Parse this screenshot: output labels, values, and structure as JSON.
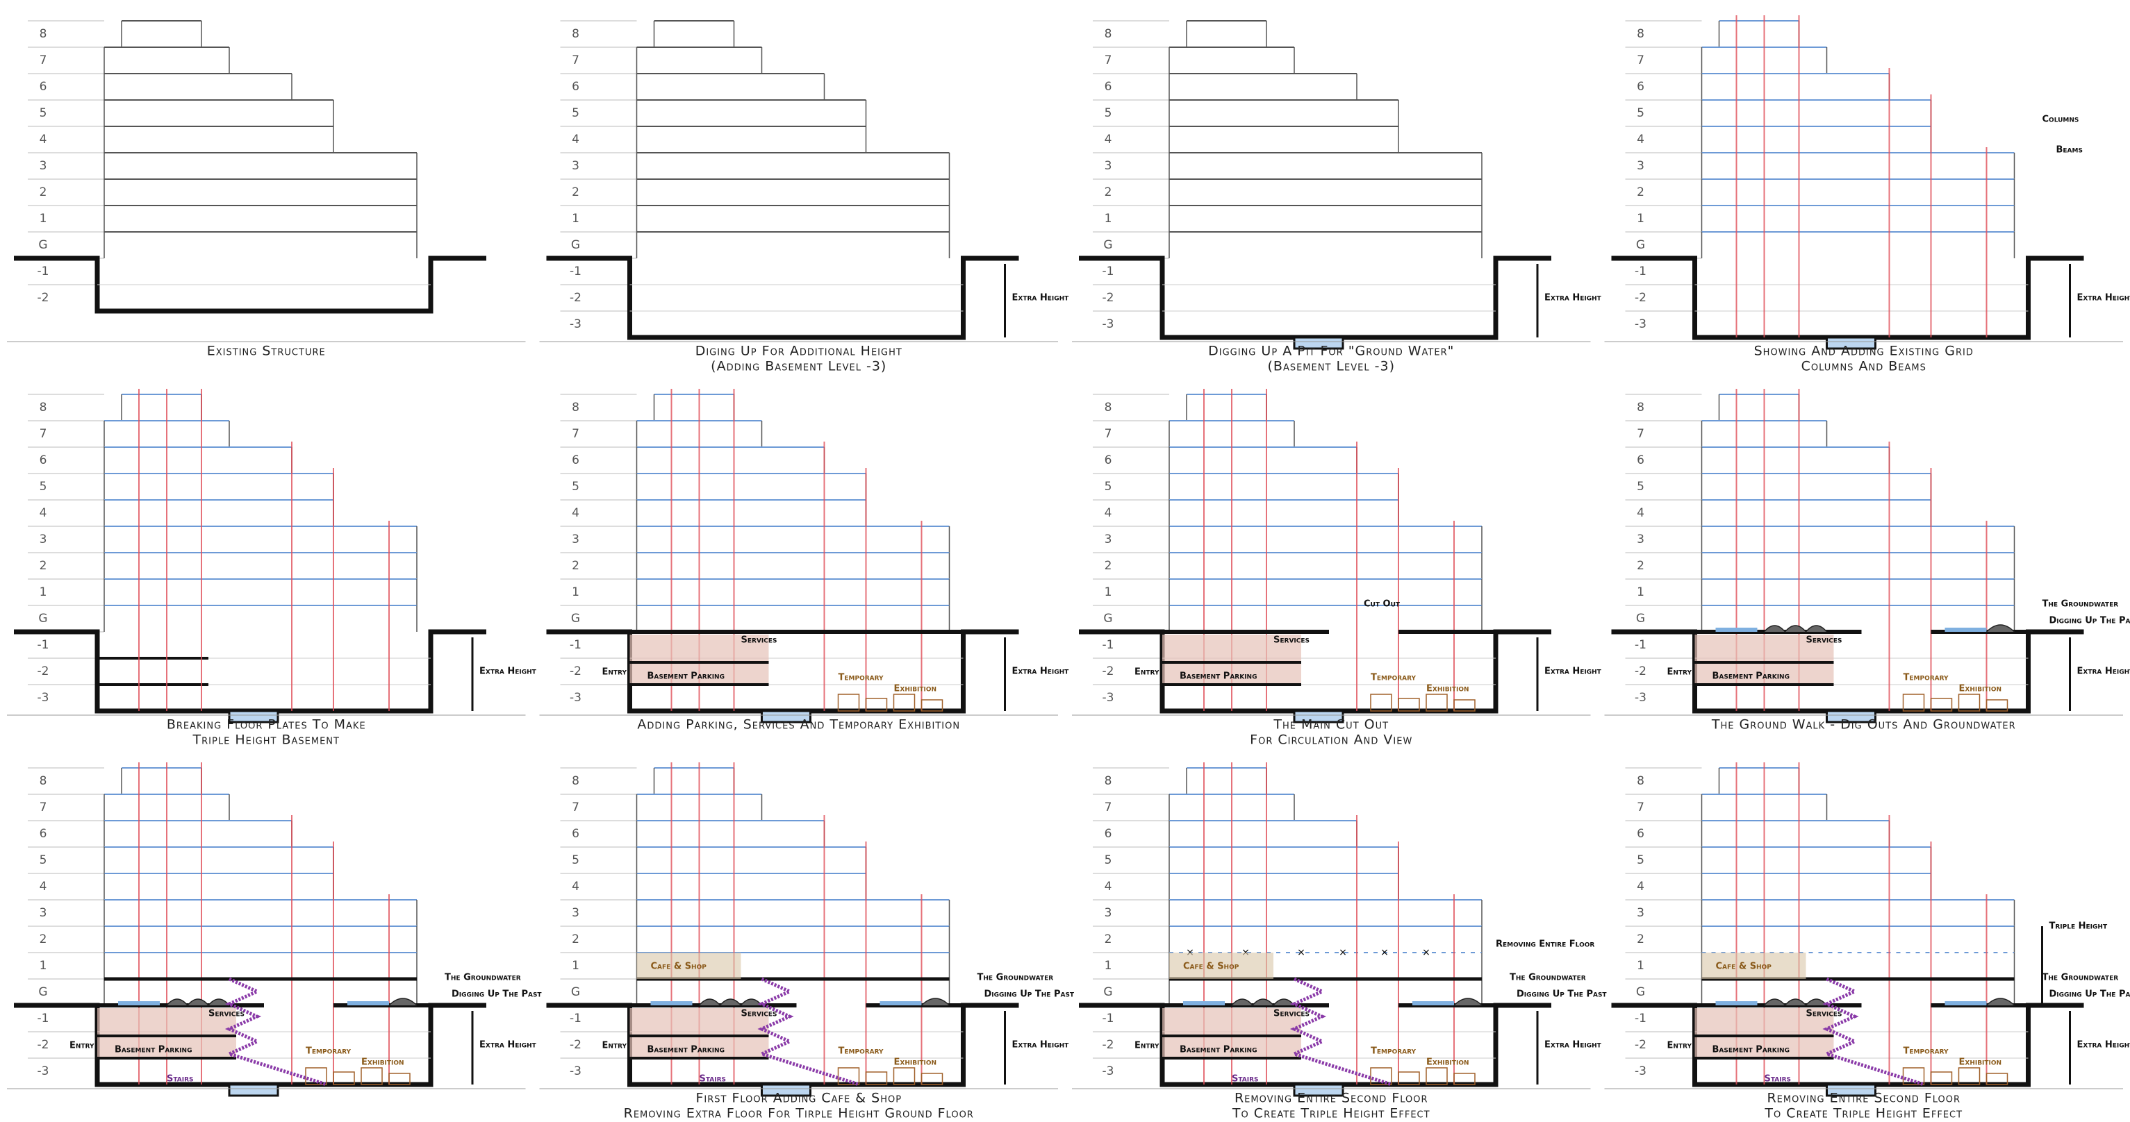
{
  "panels": [
    {
      "levels": [
        "8",
        "7",
        "6",
        "5",
        "4",
        "3",
        "2",
        "1",
        "G",
        "-1",
        "-2"
      ],
      "caption": [
        "Existing Structure"
      ],
      "features": [],
      "notes": {}
    },
    {
      "levels": [
        "8",
        "7",
        "6",
        "5",
        "4",
        "3",
        "2",
        "1",
        "G",
        "-1",
        "-2",
        "-3"
      ],
      "caption": [
        "Diging Up For Additional Height",
        "(Adding Basement Level -3)"
      ],
      "features": [
        "deep"
      ],
      "notes": {
        "extra": "Extra Height"
      }
    },
    {
      "levels": [
        "8",
        "7",
        "6",
        "5",
        "4",
        "3",
        "2",
        "1",
        "G",
        "-1",
        "-2",
        "-3"
      ],
      "caption": [
        "Digging Up A Pit For \"Ground Water\"",
        "(Basement Level -3)"
      ],
      "features": [
        "deep",
        "pit"
      ],
      "notes": {
        "extra": "Extra Height"
      }
    },
    {
      "levels": [
        "8",
        "7",
        "6",
        "5",
        "4",
        "3",
        "2",
        "1",
        "G",
        "-1",
        "-2",
        "-3"
      ],
      "caption": [
        "Showing And Adding Existing Grid",
        "Columns And Beams"
      ],
      "features": [
        "deep",
        "pit",
        "grid"
      ],
      "notes": {
        "extra": "Extra Height",
        "columns": "Columns",
        "beams": "Beams"
      }
    },
    {
      "levels": [
        "8",
        "7",
        "6",
        "5",
        "4",
        "3",
        "2",
        "1",
        "G",
        "-1",
        "-2",
        "-3"
      ],
      "caption": [
        "Breaking Floor Plates To Make",
        "Triple Height Basement"
      ],
      "features": [
        "deep",
        "pit",
        "grid",
        "broken"
      ],
      "notes": {
        "extra": "Extra Height"
      }
    },
    {
      "levels": [
        "8",
        "7",
        "6",
        "5",
        "4",
        "3",
        "2",
        "1",
        "G",
        "-1",
        "-2",
        "-3"
      ],
      "caption": [
        "Adding Parking, Services And Temporary Exhibition"
      ],
      "features": [
        "deep",
        "pit",
        "grid",
        "parking"
      ],
      "notes": {
        "extra": "Extra Height",
        "services": "Services",
        "entry": "Entry",
        "parking": "Basement Parking",
        "temporary": "Temporary",
        "exhibition": "Exhibition"
      }
    },
    {
      "levels": [
        "8",
        "7",
        "6",
        "5",
        "4",
        "3",
        "2",
        "1",
        "G",
        "-1",
        "-2",
        "-3"
      ],
      "caption": [
        "The Main Cut Out",
        "For Circulation And View"
      ],
      "features": [
        "deep",
        "pit",
        "grid",
        "parking",
        "cutout"
      ],
      "notes": {
        "extra": "Extra Height",
        "services": "Services",
        "entry": "Entry",
        "parking": "Basement Parking",
        "temporary": "Temporary",
        "exhibition": "Exhibition",
        "cut": "Cut Out"
      }
    },
    {
      "levels": [
        "8",
        "7",
        "6",
        "5",
        "4",
        "3",
        "2",
        "1",
        "G",
        "-1",
        "-2",
        "-3"
      ],
      "caption": [
        "The Ground Walk - Dig Outs And Groundwater"
      ],
      "features": [
        "deep",
        "pit",
        "grid",
        "parking",
        "cutout",
        "ground"
      ],
      "notes": {
        "extra": "Extra Height",
        "services": "Services",
        "entry": "Entry",
        "parking": "Basement Parking",
        "temporary": "Temporary",
        "exhibition": "Exhibition",
        "groundwater": "The Groundwater",
        "past": "Digging Up The Past"
      }
    },
    {
      "levels": [
        "8",
        "7",
        "6",
        "5",
        "4",
        "3",
        "2",
        "1",
        "G",
        "-1",
        "-2",
        "-3"
      ],
      "caption": [],
      "features": [
        "deep",
        "pit",
        "grid",
        "parking",
        "cutout",
        "ground",
        "stairs"
      ],
      "notes": {
        "extra": "Extra Height",
        "services": "Services",
        "entry": "Entry",
        "parking": "Basement Parking",
        "temporary": "Temporary",
        "exhibition": "Exhibition",
        "groundwater": "The Groundwater",
        "past": "Digging Up The Past",
        "stairs": "Stairs"
      }
    },
    {
      "levels": [
        "8",
        "7",
        "6",
        "5",
        "4",
        "3",
        "2",
        "1",
        "G",
        "-1",
        "-2",
        "-3"
      ],
      "caption": [
        "First Floor Adding Cafe & Shop",
        "Removing Extra Floor For Tirple Height Ground Floor"
      ],
      "features": [
        "deep",
        "pit",
        "grid",
        "parking",
        "cutout",
        "ground",
        "stairs",
        "cafe"
      ],
      "notes": {
        "extra": "Extra Height",
        "services": "Services",
        "entry": "Entry",
        "parking": "Basement Parking",
        "temporary": "Temporary",
        "exhibition": "Exhibition",
        "groundwater": "The Groundwater",
        "past": "Digging Up The Past",
        "stairs": "Stairs",
        "cafe": "Cafe & Shop"
      }
    },
    {
      "levels": [
        "8",
        "7",
        "6",
        "5",
        "4",
        "3",
        "2",
        "1",
        "G",
        "-1",
        "-2",
        "-3"
      ],
      "caption": [
        "Removing Entire Second Floor",
        "To Create Triple Height Effect"
      ],
      "features": [
        "deep",
        "pit",
        "grid",
        "parking",
        "cutout",
        "ground",
        "stairs",
        "cafe",
        "remove"
      ],
      "notes": {
        "extra": "Extra Height",
        "services": "Services",
        "entry": "Entry",
        "parking": "Basement Parking",
        "temporary": "Temporary",
        "exhibition": "Exhibition",
        "groundwater": "The Groundwater",
        "past": "Digging Up The Past",
        "stairs": "Stairs",
        "cafe": "Cafe & Shop",
        "remove": "Removing Entire Floor"
      }
    },
    {
      "levels": [
        "8",
        "7",
        "6",
        "5",
        "4",
        "3",
        "2",
        "1",
        "G",
        "-1",
        "-2",
        "-3"
      ],
      "caption": [
        "Removing Entire Second Floor",
        "To Create Triple Height Effect"
      ],
      "features": [
        "deep",
        "pit",
        "grid",
        "parking",
        "cutout",
        "ground",
        "stairs",
        "cafe",
        "triple"
      ],
      "notes": {
        "extra": "Extra Height",
        "services": "Services",
        "entry": "Entry",
        "parking": "Basement Parking",
        "temporary": "Temporary",
        "exhibition": "Exhibition",
        "groundwater": "The Groundwater",
        "past": "Digging Up The Past",
        "stairs": "Stairs",
        "cafe": "Cafe & Shop",
        "triple": "Triple Height"
      }
    }
  ]
}
